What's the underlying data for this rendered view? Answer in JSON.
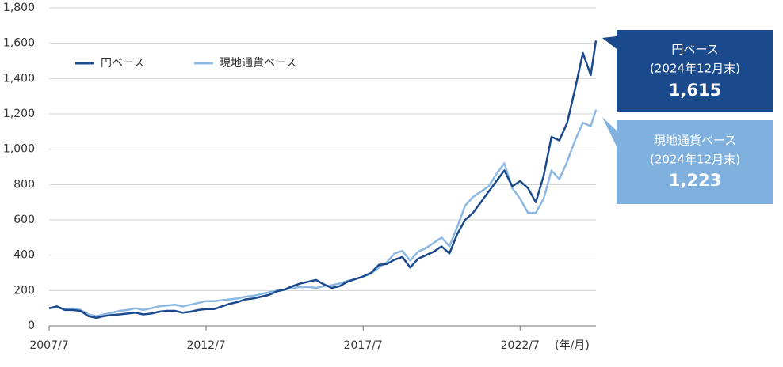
{
  "chart_data": {
    "type": "line",
    "x": [
      "2007/7",
      "2007/10",
      "2008/1",
      "2008/4",
      "2008/7",
      "2008/10",
      "2009/1",
      "2009/4",
      "2009/7",
      "2009/10",
      "2010/1",
      "2010/4",
      "2010/7",
      "2010/10",
      "2011/1",
      "2011/4",
      "2011/7",
      "2011/10",
      "2012/1",
      "2012/4",
      "2012/7",
      "2012/10",
      "2013/1",
      "2013/4",
      "2013/7",
      "2013/10",
      "2014/1",
      "2014/4",
      "2014/7",
      "2014/10",
      "2015/1",
      "2015/4",
      "2015/7",
      "2015/10",
      "2016/1",
      "2016/4",
      "2016/7",
      "2016/10",
      "2017/1",
      "2017/4",
      "2017/7",
      "2017/10",
      "2018/1",
      "2018/4",
      "2018/7",
      "2018/10",
      "2019/1",
      "2019/4",
      "2019/7",
      "2019/10",
      "2020/1",
      "2020/4",
      "2020/7",
      "2020/10",
      "2021/1",
      "2021/4",
      "2021/7",
      "2021/10",
      "2022/1",
      "2022/4",
      "2022/7",
      "2022/10",
      "2023/1",
      "2023/4",
      "2023/7",
      "2023/10",
      "2024/1",
      "2024/4",
      "2024/7",
      "2024/10",
      "2024/12"
    ],
    "series": [
      {
        "name": "円ベース",
        "color": "#1b4a8c",
        "values": [
          100,
          110,
          90,
          90,
          85,
          55,
          45,
          55,
          62,
          65,
          70,
          75,
          65,
          70,
          80,
          85,
          85,
          75,
          80,
          90,
          95,
          95,
          110,
          125,
          135,
          150,
          155,
          165,
          175,
          195,
          205,
          225,
          240,
          250,
          260,
          235,
          215,
          225,
          250,
          265,
          280,
          300,
          345,
          350,
          375,
          390,
          330,
          380,
          400,
          420,
          450,
          410,
          520,
          600,
          640,
          700,
          760,
          820,
          880,
          790,
          820,
          780,
          700,
          850,
          1070,
          1050,
          1150,
          1340,
          1545,
          1420,
          1615
        ]
      },
      {
        "name": "現地通貨ベース",
        "color": "#8cb9e4",
        "values": [
          100,
          105,
          95,
          100,
          90,
          65,
          55,
          65,
          75,
          85,
          90,
          100,
          90,
          100,
          110,
          115,
          120,
          110,
          120,
          130,
          140,
          140,
          145,
          150,
          155,
          165,
          170,
          180,
          190,
          200,
          205,
          215,
          220,
          220,
          215,
          225,
          230,
          240,
          255,
          265,
          280,
          295,
          330,
          360,
          410,
          425,
          370,
          420,
          440,
          470,
          500,
          450,
          560,
          680,
          730,
          760,
          790,
          860,
          920,
          780,
          720,
          640,
          640,
          720,
          880,
          830,
          930,
          1050,
          1150,
          1130,
          1223
        ]
      }
    ],
    "xticks": [
      "2007/7",
      "2012/7",
      "2017/7",
      "2022/7"
    ],
    "xlabel": "(年/月)",
    "ylim": [
      0,
      1800
    ],
    "yticks": [
      0,
      200,
      400,
      600,
      800,
      {
        "value": 1000,
        "label": "1,000"
      },
      {
        "value": 1200,
        "label": "1,200"
      },
      {
        "value": 1400,
        "label": "1,400"
      },
      {
        "value": 1600,
        "label": "1,600"
      },
      {
        "value": 1800,
        "label": "1,800"
      }
    ],
    "grid": true,
    "legend": "top-left",
    "annotations": [
      {
        "title": "円ベース",
        "note": "(2024年12月末)",
        "label": "1,615"
      },
      {
        "title": "現地通貨ベース",
        "note": "(2024年12月末)",
        "label": "1,223"
      }
    ]
  }
}
